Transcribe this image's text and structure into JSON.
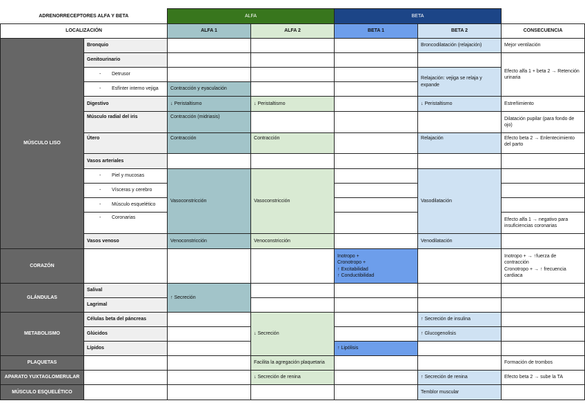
{
  "title": "ADRENORRECEPTORES ALFA Y BETA",
  "headers": {
    "alfa": "ALFA",
    "beta": "BETA",
    "localizacion": "LOCALIZACIÓN",
    "alfa1": "ALFA 1",
    "alfa2": "ALFA 2",
    "beta1": "BETA 1",
    "beta2": "BETA 2",
    "consecuencia": "CONSECUENCIA"
  },
  "categories": {
    "musculo_liso": "MÚSCULO LISO",
    "corazon": "CORAZÓN",
    "glandulas": "GLÁNDULAS",
    "metabolismo": "METABOLISMO",
    "plaquetas": "PLAQUETAS",
    "aparato": "APARATO YUXTAGLOMERULAR",
    "musculo_esq": "MÚSCULO ESQUELÉTICO"
  },
  "colors": {
    "alfa": "#38761d",
    "beta": "#1c4587",
    "alfa1": "#a2c4c9",
    "alfa2": "#d9ead3",
    "beta1": "#6d9eeb",
    "beta2": "#cfe2f3",
    "category": "#666666",
    "subcategory": "#efefef"
  },
  "rows": [
    {
      "loc": "Bronquio",
      "b2": "Broncodilatación (relajación)",
      "cons": "Mejor ventilación"
    },
    {
      "loc": "Genitourinario",
      "cons": "Efecto alfa 1 + beta 2 → Retención urinaria"
    },
    {
      "loc": "Detrusor",
      "b2": "Relajación: vejiga se relaja y expande"
    },
    {
      "loc": "Esfínter interno vejiga",
      "a1": "Contracción y eyaculación"
    },
    {
      "loc": "Digestivo",
      "a1": "↓ Peristaltismo",
      "a2": "↓ Peristaltismo",
      "b2": "↓ Peristaltismo",
      "cons": "Estreñimiento"
    },
    {
      "loc": "Músculo radial del iris",
      "a1": "Contracción (midriasis)",
      "cons": "Dilatación pupilar (para fondo de ojo)"
    },
    {
      "loc": "Útero",
      "a1": "Contracción",
      "a2": "Contracción",
      "b2": "Relajación",
      "cons": "Efecto beta 2 → Enlentecimiento del parto"
    },
    {
      "loc": "Vasos arteriales"
    },
    {
      "loc": "Piel y mucosas",
      "a1": "Vasoconstricción",
      "a2": "Vasoconstricción",
      "b2": "Vasodilatación"
    },
    {
      "loc": "Vísceras y cerebro"
    },
    {
      "loc": "Músculo esquelético"
    },
    {
      "loc": "Coronarias",
      "cons": "Efecto alfa 1 → negativo para insuficiencias coronarias"
    },
    {
      "loc": "Vasos venoso",
      "a1": "Venoconstricción",
      "a2": "Venoconstricción",
      "b2": "Venodilatación"
    },
    {
      "b1": "Inotropo +\nCronotropo +\n↑ Excitabilidad\n↑ Conductibilidad",
      "cons": "Inotropo + → ↑fuerza de contracción\nCronotropo + → ↑ frecuencia cardiaca"
    },
    {
      "loc": "Salival",
      "a1": "↑ Secreción"
    },
    {
      "loc": "Lagrimal"
    },
    {
      "loc": "Células beta del páncreas",
      "a2": "↓ Secreción",
      "b2": "↑ Secreción de insulina"
    },
    {
      "loc": "Glúcidos",
      "b2": "↑ Glucogenolisis"
    },
    {
      "loc": "Lípidos",
      "b1": "↑ Lipólisis"
    },
    {
      "a2": "Facilita la agregación plaquetaria",
      "cons": "Formación de trombos"
    },
    {
      "a2": "↓ Secreción de renina",
      "b2": "↑ Secreción de renina",
      "cons": "Efecto beta 2 → sube la TA"
    },
    {
      "b2": "Temblor muscular"
    }
  ]
}
